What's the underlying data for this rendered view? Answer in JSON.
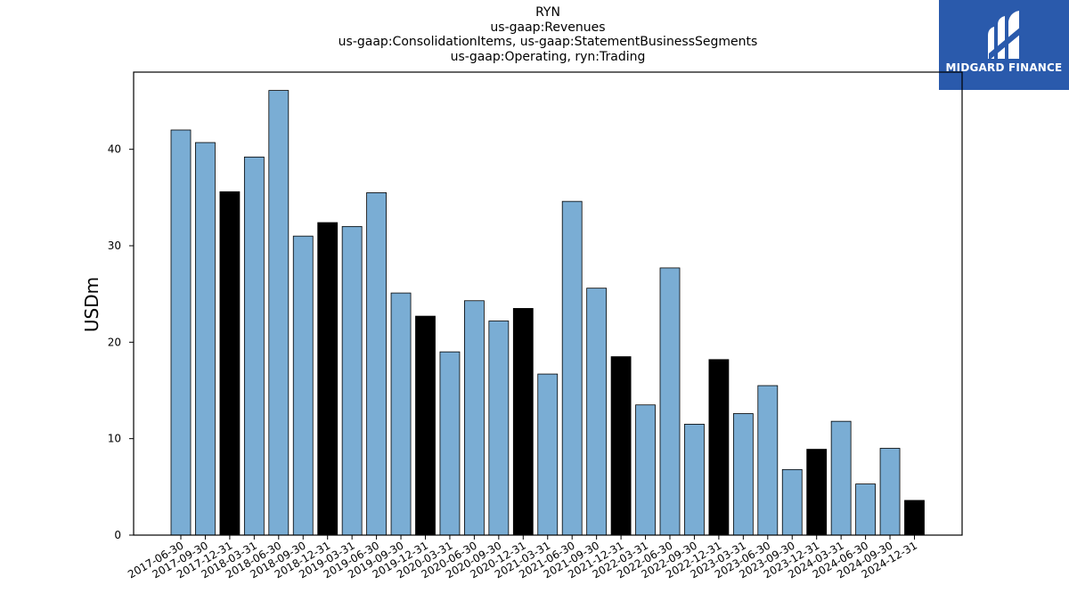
{
  "header": {
    "title_lines": [
      "RYN",
      "us-gaap:Revenues",
      "us-gaap:ConsolidationItems, us-gaap:StatementBusinessSegments",
      "us-gaap:Operating, ryn:Trading"
    ]
  },
  "logo": {
    "text": "MIDGARD FINANCE",
    "icon": "midgard-logo-icon",
    "background": "#2a5aac"
  },
  "chart_data": {
    "type": "bar",
    "title": "RYN",
    "subtitle": "us-gaap:Revenues",
    "ylabel": "USDm",
    "xlabel": "",
    "ylim": [
      0,
      48
    ],
    "yticks": [
      0,
      10,
      20,
      30,
      40
    ],
    "grid": false,
    "categories": [
      "2017-06-30",
      "2017-09-30",
      "2017-12-31",
      "2018-03-31",
      "2018-06-30",
      "2018-09-30",
      "2018-12-31",
      "2019-03-31",
      "2019-06-30",
      "2019-09-30",
      "2019-12-31",
      "2020-03-31",
      "2020-06-30",
      "2020-09-30",
      "2020-12-31",
      "2021-03-31",
      "2021-06-30",
      "2021-09-30",
      "2021-12-31",
      "2022-03-31",
      "2022-06-30",
      "2022-09-30",
      "2022-12-31",
      "2023-03-31",
      "2023-06-30",
      "2023-09-30",
      "2023-12-31",
      "2024-03-31",
      "2024-06-30",
      "2024-09-30",
      "2024-12-31"
    ],
    "values": [
      42.0,
      40.7,
      35.6,
      39.2,
      46.1,
      31.0,
      32.4,
      32.0,
      35.5,
      25.1,
      22.7,
      19.0,
      24.3,
      22.2,
      23.5,
      16.7,
      34.6,
      25.6,
      18.5,
      13.5,
      27.7,
      11.5,
      18.2,
      12.6,
      15.5,
      6.8,
      8.9,
      11.8,
      5.3,
      9.0,
      3.6
    ],
    "colors": {
      "quarter": "#7aadd4",
      "year_end": "#000000",
      "edge": "#000000"
    }
  }
}
